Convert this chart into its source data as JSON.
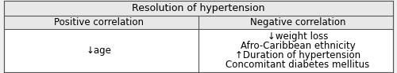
{
  "title": "Resolution of hypertension",
  "col_headers": [
    "Positive correlation",
    "Negative correlation"
  ],
  "positive_items": [
    "↓age"
  ],
  "negative_items": [
    "↓weight loss",
    "Afro-Caribbean ethnicity",
    "↑Duration of hypertension",
    "Concomitant diabetes mellitus"
  ],
  "background_color": "#f0f0f0",
  "border_color": "#555555",
  "font_size": 8.5,
  "header_font_size": 8.5,
  "title_font_size": 9
}
